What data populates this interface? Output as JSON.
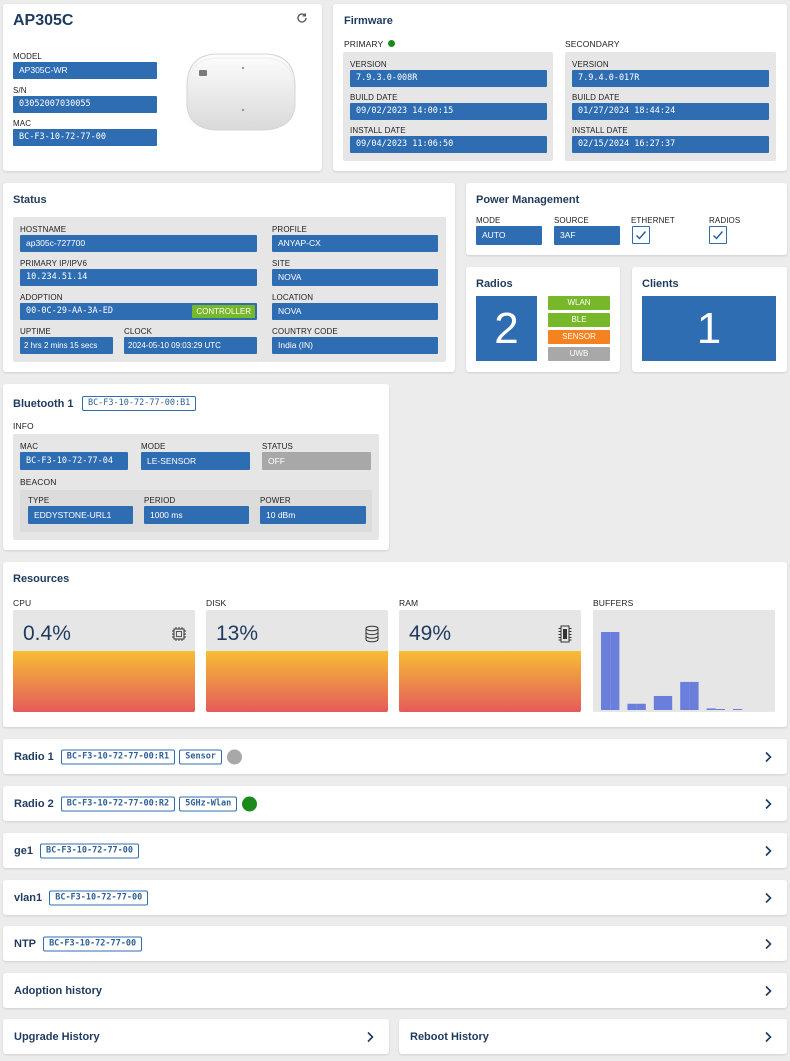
{
  "device": {
    "title": "AP305C",
    "model_label": "MODEL",
    "model": "AP305C-WR",
    "sn_label": "S/N",
    "sn": "03052007030055",
    "mac_label": "MAC",
    "mac": "BC-F3-10-72-77-00"
  },
  "firmware": {
    "title": "Firmware",
    "primary": {
      "label": "PRIMARY",
      "status_color": "#1a8a1a",
      "version_label": "VERSION",
      "version": "7.9.3.0-008R",
      "build_label": "BUILD DATE",
      "build": "09/02/2023 14:00:15",
      "install_label": "INSTALL DATE",
      "install": "09/04/2023 11:06:50"
    },
    "secondary": {
      "label": "SECONDARY",
      "version_label": "VERSION",
      "version": "7.9.4.0-017R",
      "build_label": "BUILD DATE",
      "build": "01/27/2024 18:44:24",
      "install_label": "INSTALL DATE",
      "install": "02/15/2024 16:27:37"
    }
  },
  "status": {
    "title": "Status",
    "hostname_label": "HOSTNAME",
    "hostname": "ap305c-727700",
    "profile_label": "PROFILE",
    "profile": "ANYAP-CX",
    "ip_label": "PRIMARY IP/IPV6",
    "ip": "10.234.51.14",
    "site_label": "SITE",
    "site": "NOVA",
    "adoption_label": "ADOPTION",
    "adoption": "00-0C-29-AA-3A-ED",
    "adoption_badge": "CONTROLLER",
    "location_label": "LOCATION",
    "location": "NOVA",
    "uptime_label": "UPTIME",
    "uptime": "2 hrs 2 mins 15 secs",
    "clock_label": "CLOCK",
    "clock": "2024-05-10 09:03:29 UTC",
    "country_label": "COUNTRY CODE",
    "country": "India (IN)"
  },
  "power": {
    "title": "Power Management",
    "mode_label": "MODE",
    "mode": "AUTO",
    "source_label": "SOURCE",
    "source": "3AF",
    "ethernet_label": "ETHERNET",
    "ethernet_checked": true,
    "radios_label": "RADIOS",
    "radios_checked": true
  },
  "radios": {
    "title": "Radios",
    "count": "2",
    "chips": [
      {
        "label": "WLAN",
        "color": "#76b82a"
      },
      {
        "label": "BLE",
        "color": "#76b82a"
      },
      {
        "label": "SENSOR",
        "color": "#f58220"
      },
      {
        "label": "UWB",
        "color": "#a8a8a8"
      }
    ]
  },
  "clients": {
    "title": "Clients",
    "count": "1"
  },
  "bluetooth": {
    "title": "Bluetooth 1",
    "tag": "BC-F3-10-72-77-00:B1",
    "info_label": "INFO",
    "mac_label": "MAC",
    "mac": "BC-F3-10-72-77-04",
    "mode_label": "MODE",
    "mode": "LE-SENSOR",
    "status_label": "STATUS",
    "status": "OFF",
    "beacon_label": "BEACON",
    "type_label": "TYPE",
    "type": "EDDYSTONE-URL1",
    "period_label": "PERIOD",
    "period": "1000 ms",
    "power_label": "POWER",
    "power": "10 dBm"
  },
  "resources": {
    "title": "Resources",
    "cpu_label": "CPU",
    "cpu": "0.4%",
    "cpu_level": 0.6,
    "disk_label": "DISK",
    "disk": "13%",
    "disk_level": 0.6,
    "ram_label": "RAM",
    "ram": "49%",
    "ram_level": 0.6,
    "buffers_label": "BUFFERS",
    "buffers": [
      1.0,
      1.0,
      0.08,
      0.08,
      0.18,
      0.18,
      0.36,
      0.36,
      0.02,
      0.01,
      0.01
    ]
  },
  "rows": {
    "radio1": {
      "title": "Radio 1",
      "tag1": "BC-F3-10-72-77-00:R1",
      "tag2": "Sensor",
      "dot_color": "#a8a8a8"
    },
    "radio2": {
      "title": "Radio 2",
      "tag1": "BC-F3-10-72-77-00:R2",
      "tag2": "5GHz-Wlan",
      "dot_color": "#1a8a1a"
    },
    "ge1": {
      "title": "ge1",
      "tag1": "BC-F3-10-72-77-00"
    },
    "vlan1": {
      "title": "vlan1",
      "tag1": "BC-F3-10-72-77-00"
    },
    "ntp": {
      "title": "NTP",
      "tag1": "BC-F3-10-72-77-00"
    },
    "adoption_history": {
      "title": "Adoption history"
    },
    "upgrade_history": {
      "title": "Upgrade History"
    },
    "reboot_history": {
      "title": "Reboot History"
    }
  },
  "colors": {
    "accent": "#2f6db2",
    "title": "#1e3a5f"
  }
}
